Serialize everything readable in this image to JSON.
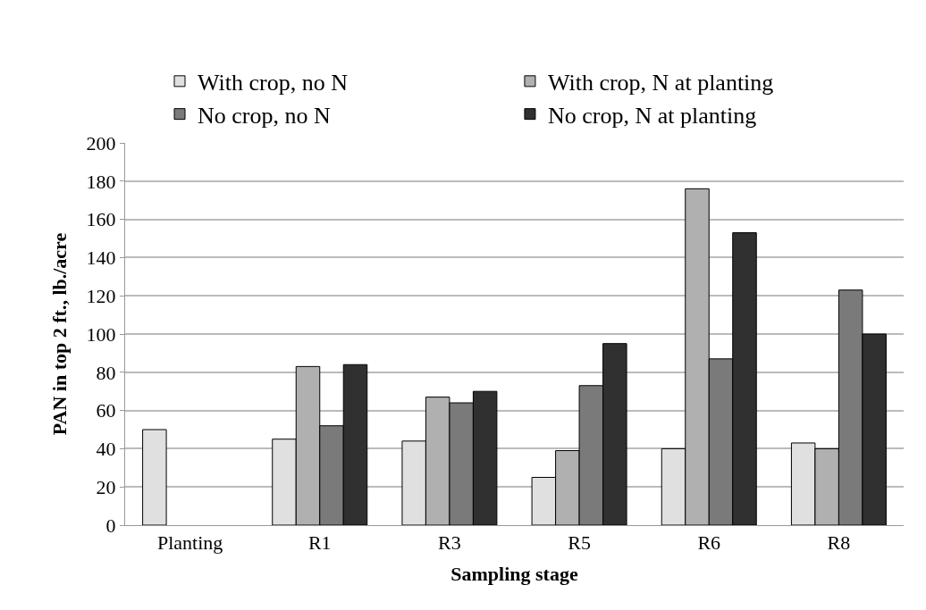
{
  "chart_data": {
    "type": "bar",
    "xlabel": "Sampling stage",
    "ylabel": "PAN in top 2 ft., lb./acre",
    "categories": [
      "Planting",
      "R1",
      "R3",
      "R5",
      "R6",
      "R8"
    ],
    "series": [
      {
        "name": "With crop, no N",
        "color": "#e0e0e0",
        "values": [
          50,
          45,
          44,
          25,
          40,
          43
        ]
      },
      {
        "name": "With crop, N at planting",
        "color": "#b0b0b0",
        "values": [
          null,
          83,
          67,
          39,
          176,
          40
        ]
      },
      {
        "name": "No crop, no N",
        "color": "#7a7a7a",
        "values": [
          null,
          52,
          64,
          73,
          87,
          123
        ]
      },
      {
        "name": "No crop, N at planting",
        "color": "#303030",
        "values": [
          null,
          84,
          70,
          95,
          153,
          100
        ]
      }
    ],
    "ylim": [
      0,
      200
    ],
    "yticks": [
      0,
      20,
      40,
      60,
      80,
      100,
      120,
      140,
      160,
      180,
      200
    ],
    "grid": "y",
    "legend": "top"
  }
}
